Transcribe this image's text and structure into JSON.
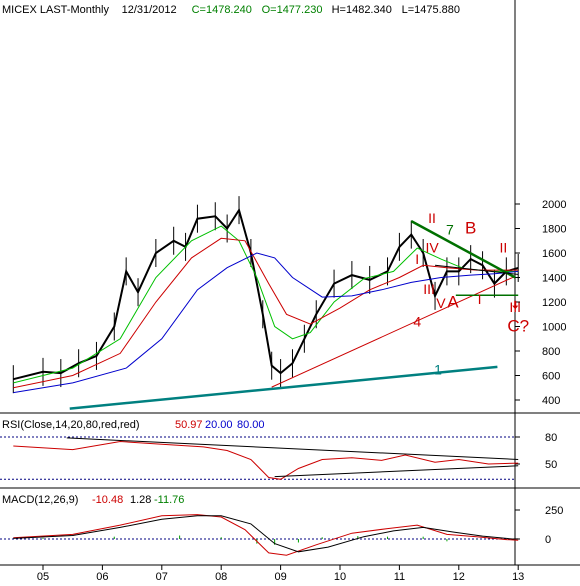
{
  "header": {
    "symbol": "MICEX LAST-Monthly",
    "date": "12/31/2012",
    "close": "C=1478.240",
    "open": "O=1477.230",
    "high": "H=1482.340",
    "low": "L=1475.880"
  },
  "rsi": {
    "label": "RSI(Close,14,20,80,red,red)",
    "value": "50.97",
    "low": "20.00",
    "high": "80.00"
  },
  "macd": {
    "label": "MACD(12,26,9)",
    "v1": "-10.48",
    "v2": "1.28",
    "v3": "-11.76"
  },
  "colors": {
    "price": "#000000",
    "ma_fast": "#00c000",
    "ma_mid": "#cc0000",
    "ma_slow": "#0000cc",
    "trend": "#008080",
    "wave_red": "#cc0000",
    "wave_green": "#007000"
  },
  "chart_data": [
    {
      "type": "candlestick",
      "title": "MICEX LAST-Monthly",
      "x_ticks": [
        "05",
        "06",
        "07",
        "08",
        "09",
        "10",
        "11",
        "12",
        "13"
      ],
      "y_ticks": [
        400,
        600,
        800,
        1000,
        1200,
        1400,
        1600,
        1800,
        2000
      ],
      "ylim": [
        330,
        2030
      ],
      "scale": "linear",
      "grid": false,
      "price_path": [
        [
          2004.5,
          570
        ],
        [
          2005.0,
          630
        ],
        [
          2005.3,
          620
        ],
        [
          2005.6,
          700
        ],
        [
          2005.9,
          760
        ],
        [
          2006.2,
          1000
        ],
        [
          2006.4,
          1450
        ],
        [
          2006.6,
          1280
        ],
        [
          2006.9,
          1600
        ],
        [
          2007.2,
          1700
        ],
        [
          2007.4,
          1650
        ],
        [
          2007.6,
          1880
        ],
        [
          2007.9,
          1900
        ],
        [
          2008.1,
          1800
        ],
        [
          2008.3,
          1950
        ],
        [
          2008.5,
          1600
        ],
        [
          2008.7,
          1100
        ],
        [
          2008.85,
          680
        ],
        [
          2009.0,
          620
        ],
        [
          2009.2,
          700
        ],
        [
          2009.4,
          900
        ],
        [
          2009.6,
          1100
        ],
        [
          2009.9,
          1350
        ],
        [
          2010.2,
          1420
        ],
        [
          2010.5,
          1380
        ],
        [
          2010.8,
          1450
        ],
        [
          2011.0,
          1650
        ],
        [
          2011.2,
          1750
        ],
        [
          2011.4,
          1600
        ],
        [
          2011.6,
          1250
        ],
        [
          2011.8,
          1450
        ],
        [
          2012.0,
          1450
        ],
        [
          2012.2,
          1550
        ],
        [
          2012.4,
          1500
        ],
        [
          2012.6,
          1350
        ],
        [
          2012.8,
          1450
        ],
        [
          2013.0,
          1478
        ]
      ],
      "series": [
        {
          "values": [
            [
              2004.5,
              540
            ],
            [
              2005.5,
              660
            ],
            [
              2006.3,
              900
            ],
            [
              2006.9,
              1400
            ],
            [
              2007.5,
              1700
            ],
            [
              2008.0,
              1820
            ],
            [
              2008.3,
              1700
            ],
            [
              2008.6,
              1400
            ],
            [
              2008.9,
              1000
            ],
            [
              2009.2,
              900
            ],
            [
              2009.5,
              950
            ],
            [
              2009.9,
              1200
            ],
            [
              2010.4,
              1390
            ],
            [
              2010.9,
              1450
            ],
            [
              2011.3,
              1640
            ],
            [
              2011.7,
              1550
            ],
            [
              2012.1,
              1470
            ],
            [
              2012.6,
              1450
            ],
            [
              2013.0,
              1450
            ]
          ]
        },
        {
          "values": [
            [
              2004.5,
              500
            ],
            [
              2005.5,
              600
            ],
            [
              2006.3,
              780
            ],
            [
              2006.9,
              1200
            ],
            [
              2007.5,
              1560
            ],
            [
              2008.0,
              1720
            ],
            [
              2008.4,
              1700
            ],
            [
              2008.8,
              1350
            ],
            [
              2009.1,
              1100
            ],
            [
              2009.5,
              1020
            ],
            [
              2010.0,
              1150
            ],
            [
              2010.5,
              1300
            ],
            [
              2011.0,
              1400
            ],
            [
              2011.4,
              1500
            ],
            [
              2011.8,
              1480
            ],
            [
              2012.3,
              1460
            ],
            [
              2013.0,
              1460
            ]
          ]
        },
        {
          "values": [
            [
              2004.5,
              460
            ],
            [
              2005.5,
              540
            ],
            [
              2006.4,
              660
            ],
            [
              2007.0,
              900
            ],
            [
              2007.6,
              1300
            ],
            [
              2008.1,
              1480
            ],
            [
              2008.6,
              1600
            ],
            [
              2008.9,
              1560
            ],
            [
              2009.2,
              1400
            ],
            [
              2009.7,
              1240
            ],
            [
              2010.2,
              1250
            ],
            [
              2010.7,
              1300
            ],
            [
              2011.2,
              1360
            ],
            [
              2011.7,
              1400
            ],
            [
              2012.2,
              1420
            ],
            [
              2012.6,
              1430
            ],
            [
              2013.0,
              1450
            ]
          ]
        }
      ],
      "annotations": [
        {
          "text": "1",
          "x": 2011.65,
          "y": 610,
          "color": "teal"
        },
        {
          "text": "4",
          "x": 2011.3,
          "y": 1000,
          "color": "red"
        },
        {
          "text": "II",
          "x": 2011.55,
          "y": 1845,
          "color": "red"
        },
        {
          "text": "7",
          "x": 2011.85,
          "y": 1750,
          "color": "green"
        },
        {
          "text": "B",
          "x": 2012.2,
          "y": 1760,
          "color": "red"
        },
        {
          "text": "IV",
          "x": 2011.55,
          "y": 1605,
          "color": "red"
        },
        {
          "text": "I",
          "x": 2011.3,
          "y": 1510,
          "color": "red"
        },
        {
          "text": "II",
          "x": 2012.75,
          "y": 1605,
          "color": "red"
        },
        {
          "text": "III",
          "x": 2011.5,
          "y": 1265,
          "color": "red"
        },
        {
          "text": "V",
          "x": 2011.7,
          "y": 1150,
          "color": "red"
        },
        {
          "text": "A",
          "x": 2011.9,
          "y": 1155,
          "color": "red"
        },
        {
          "text": "I",
          "x": 2012.35,
          "y": 1185,
          "color": "red"
        },
        {
          "text": "III",
          "x": 2012.95,
          "y": 1120,
          "color": "red"
        },
        {
          "text": "C?",
          "x": 2013.0,
          "y": 960,
          "color": "red"
        }
      ]
    },
    {
      "type": "line",
      "title": "RSI(Close,14,20,80,red,red)",
      "y_ticks": [
        50,
        80
      ],
      "ylim": [
        30,
        90
      ],
      "values": [
        [
          2004.5,
          70
        ],
        [
          2005.5,
          66
        ],
        [
          2006.3,
          75
        ],
        [
          2007.0,
          72
        ],
        [
          2007.7,
          69
        ],
        [
          2008.1,
          65
        ],
        [
          2008.5,
          55
        ],
        [
          2008.8,
          35
        ],
        [
          2009.0,
          33
        ],
        [
          2009.3,
          45
        ],
        [
          2009.7,
          55
        ],
        [
          2010.2,
          57
        ],
        [
          2010.7,
          54
        ],
        [
          2011.1,
          60
        ],
        [
          2011.6,
          52
        ],
        [
          2012.0,
          55
        ],
        [
          2012.5,
          50
        ],
        [
          2013.0,
          51
        ]
      ]
    },
    {
      "type": "line",
      "title": "MACD(12,26,9)",
      "y_ticks": [
        0,
        250
      ],
      "ylim": [
        -150,
        320
      ],
      "series": [
        {
          "values": [
            [
              2004.5,
              10
            ],
            [
              2005.5,
              40
            ],
            [
              2006.3,
              120
            ],
            [
              2007.0,
              200
            ],
            [
              2007.6,
              210
            ],
            [
              2008.0,
              190
            ],
            [
              2008.4,
              80
            ],
            [
              2008.8,
              -120
            ],
            [
              2009.1,
              -140
            ],
            [
              2009.6,
              -50
            ],
            [
              2010.2,
              50
            ],
            [
              2010.8,
              90
            ],
            [
              2011.3,
              120
            ],
            [
              2011.8,
              40
            ],
            [
              2012.3,
              20
            ],
            [
              2012.8,
              -5
            ],
            [
              2013.0,
              -10
            ]
          ]
        },
        {
          "values": [
            [
              2004.5,
              5
            ],
            [
              2005.5,
              30
            ],
            [
              2006.3,
              100
            ],
            [
              2007.0,
              170
            ],
            [
              2007.6,
              200
            ],
            [
              2008.0,
              200
            ],
            [
              2008.5,
              130
            ],
            [
              2008.9,
              -40
            ],
            [
              2009.3,
              -110
            ],
            [
              2009.8,
              -70
            ],
            [
              2010.4,
              20
            ],
            [
              2010.9,
              70
            ],
            [
              2011.4,
              100
            ],
            [
              2011.9,
              60
            ],
            [
              2012.4,
              25
            ],
            [
              2012.9,
              0
            ],
            [
              2013.0,
              1
            ]
          ]
        }
      ],
      "histogram": [
        [
          2005.0,
          10
        ],
        [
          2006.2,
          20
        ],
        [
          2007.3,
          30
        ],
        [
          2008.0,
          15
        ],
        [
          2008.6,
          -40
        ],
        [
          2008.9,
          -50
        ],
        [
          2009.3,
          -30
        ],
        [
          2009.7,
          15
        ],
        [
          2010.3,
          25
        ],
        [
          2010.8,
          20
        ],
        [
          2011.4,
          20
        ],
        [
          2011.8,
          -20
        ],
        [
          2012.3,
          -5
        ],
        [
          2012.8,
          -5
        ]
      ]
    }
  ]
}
